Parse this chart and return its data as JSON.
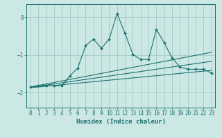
{
  "xlabel": "Humidex (Indice chaleur)",
  "ylabel": "",
  "background_color": "#cce8e4",
  "grid_color": "#aaceca",
  "line_color": "#1a7070",
  "xlim": [
    -0.5,
    23.5
  ],
  "ylim": [
    -2.4,
    0.35
  ],
  "xticks": [
    0,
    1,
    2,
    3,
    4,
    5,
    6,
    7,
    8,
    9,
    10,
    11,
    12,
    13,
    14,
    15,
    16,
    17,
    18,
    19,
    20,
    21,
    22,
    23
  ],
  "yticks": [
    0,
    -1,
    -2
  ],
  "x": [
    0,
    1,
    2,
    3,
    4,
    5,
    6,
    7,
    8,
    9,
    10,
    11,
    12,
    13,
    14,
    15,
    16,
    17,
    18,
    19,
    20,
    21,
    22,
    23
  ],
  "y_main": [
    -1.85,
    -1.82,
    -1.82,
    -1.82,
    -1.82,
    -1.55,
    -1.35,
    -0.75,
    -0.58,
    -0.82,
    -0.58,
    0.1,
    -0.42,
    -0.98,
    -1.12,
    -1.12,
    -0.32,
    -0.68,
    -1.08,
    -1.32,
    -1.38,
    -1.38,
    -1.38,
    -1.48
  ],
  "y_trend1": [
    -1.85,
    -1.81,
    -1.77,
    -1.73,
    -1.69,
    -1.65,
    -1.61,
    -1.57,
    -1.53,
    -1.49,
    -1.45,
    -1.41,
    -1.37,
    -1.33,
    -1.29,
    -1.25,
    -1.21,
    -1.17,
    -1.13,
    -1.09,
    -1.05,
    -1.01,
    -0.97,
    -0.93
  ],
  "y_trend2": [
    -1.86,
    -1.83,
    -1.8,
    -1.77,
    -1.74,
    -1.71,
    -1.68,
    -1.65,
    -1.62,
    -1.59,
    -1.56,
    -1.53,
    -1.5,
    -1.47,
    -1.44,
    -1.41,
    -1.38,
    -1.35,
    -1.32,
    -1.29,
    -1.26,
    -1.23,
    -1.2,
    -1.17
  ],
  "y_trend3": [
    -1.87,
    -1.85,
    -1.83,
    -1.81,
    -1.79,
    -1.77,
    -1.75,
    -1.73,
    -1.71,
    -1.69,
    -1.67,
    -1.65,
    -1.63,
    -1.61,
    -1.59,
    -1.57,
    -1.55,
    -1.53,
    -1.51,
    -1.49,
    -1.47,
    -1.45,
    -1.43,
    -1.41
  ]
}
